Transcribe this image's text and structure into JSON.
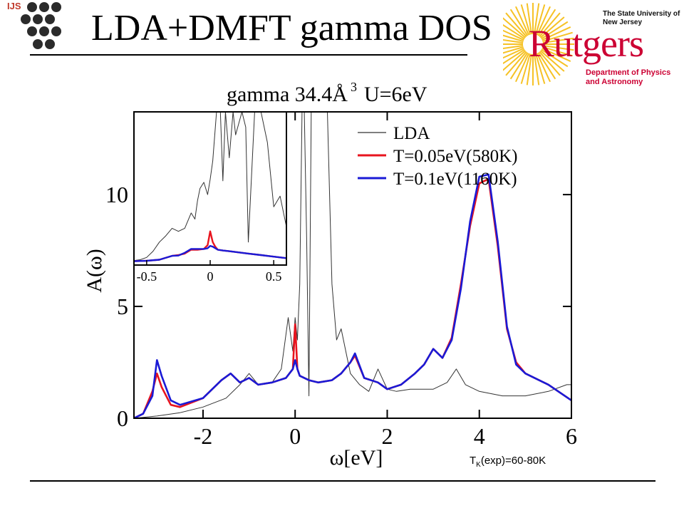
{
  "slide": {
    "title": "LDA+DMFT gamma DOS",
    "ijs_label": "IJS",
    "rutgers_wordmark": "Rutgers",
    "rutgers_university": "The State University of New Jersey",
    "rutgers_department": "Department of Physics and Astronomy",
    "footnote_prefix": "T",
    "footnote_sub": "K",
    "footnote_rest": "(exp)=60-80K",
    "accent_red": "#cc0033"
  },
  "chart_data": [
    {
      "type": "line",
      "title": "gamma 34.4Å",
      "title_superscript": "3",
      "title_suffix": "U=6eV",
      "xlabel": "ω[eV]",
      "ylabel": "A(ω)",
      "xlim": [
        -3.5,
        6
      ],
      "ylim": [
        0,
        13.7
      ],
      "xticks": [
        -2,
        0,
        2,
        4,
        6
      ],
      "yticks": [
        0,
        5,
        10
      ],
      "legend_position": "top-right",
      "series": [
        {
          "name": "LDA",
          "color": "#333333",
          "x": [
            -3.5,
            -3.0,
            -2.5,
            -2.0,
            -1.5,
            -1.2,
            -1.0,
            -0.8,
            -0.5,
            -0.3,
            -0.15,
            -0.05,
            0.0,
            0.05,
            0.1,
            0.15,
            0.2,
            0.25,
            0.3,
            0.35,
            0.4,
            0.5,
            0.6,
            0.7,
            0.8,
            0.9,
            1.0,
            1.2,
            1.4,
            1.6,
            1.8,
            2.0,
            2.2,
            2.5,
            3.0,
            3.3,
            3.5,
            3.7,
            4.0,
            4.5,
            5.0,
            5.5,
            5.9,
            6.0
          ],
          "y": [
            0.0,
            0.1,
            0.25,
            0.5,
            0.9,
            1.5,
            2.0,
            1.5,
            1.6,
            2.2,
            4.5,
            3.0,
            4.5,
            3.5,
            6.0,
            13.7,
            13.7,
            8.0,
            1.0,
            13.7,
            13.7,
            13.7,
            13.7,
            13.7,
            6.0,
            3.5,
            4.0,
            2.0,
            1.5,
            1.2,
            2.2,
            1.3,
            1.2,
            1.3,
            1.3,
            1.6,
            2.2,
            1.5,
            1.2,
            1.0,
            1.0,
            1.2,
            1.5,
            1.5
          ]
        },
        {
          "name": "T=0.05eV(580K)",
          "color": "#e8141e",
          "x": [
            -3.5,
            -3.3,
            -3.1,
            -3.0,
            -2.9,
            -2.7,
            -2.5,
            -2.0,
            -1.6,
            -1.4,
            -1.2,
            -1.0,
            -0.8,
            -0.5,
            -0.2,
            -0.05,
            0.0,
            0.05,
            0.1,
            0.3,
            0.5,
            0.8,
            1.0,
            1.2,
            1.3,
            1.5,
            1.8,
            2.0,
            2.3,
            2.6,
            2.8,
            3.0,
            3.2,
            3.4,
            3.6,
            3.8,
            4.0,
            4.2,
            4.4,
            4.6,
            4.8,
            5.0,
            5.5,
            6.0
          ],
          "y": [
            0.0,
            0.2,
            1.2,
            2.0,
            1.4,
            0.6,
            0.5,
            0.9,
            1.7,
            2.0,
            1.6,
            1.8,
            1.5,
            1.6,
            1.8,
            2.2,
            4.2,
            2.2,
            1.9,
            1.7,
            1.6,
            1.7,
            2.0,
            2.5,
            2.8,
            1.8,
            1.6,
            1.3,
            1.5,
            2.0,
            2.4,
            3.1,
            2.7,
            3.6,
            6.0,
            8.6,
            10.5,
            10.7,
            7.7,
            4.0,
            2.5,
            2.0,
            1.5,
            0.8
          ]
        },
        {
          "name": "T=0.1eV(1160K)",
          "color": "#1a1ad6",
          "x": [
            -3.5,
            -3.3,
            -3.1,
            -3.0,
            -2.9,
            -2.7,
            -2.5,
            -2.0,
            -1.6,
            -1.4,
            -1.2,
            -1.0,
            -0.8,
            -0.5,
            -0.2,
            -0.05,
            0.0,
            0.05,
            0.1,
            0.3,
            0.5,
            0.8,
            1.0,
            1.2,
            1.3,
            1.5,
            1.8,
            2.0,
            2.3,
            2.6,
            2.8,
            3.0,
            3.2,
            3.4,
            3.6,
            3.8,
            4.0,
            4.2,
            4.4,
            4.6,
            4.8,
            5.0,
            5.5,
            6.0
          ],
          "y": [
            0.0,
            0.2,
            1.0,
            2.6,
            1.9,
            0.8,
            0.6,
            0.9,
            1.7,
            2.0,
            1.6,
            1.8,
            1.5,
            1.6,
            1.8,
            2.2,
            2.6,
            2.2,
            1.9,
            1.7,
            1.6,
            1.7,
            2.0,
            2.5,
            2.9,
            1.8,
            1.6,
            1.3,
            1.5,
            2.0,
            2.4,
            3.1,
            2.7,
            3.5,
            5.8,
            8.8,
            10.8,
            10.9,
            7.9,
            4.1,
            2.4,
            2.0,
            1.5,
            0.8
          ]
        }
      ]
    },
    {
      "type": "line",
      "role": "inset",
      "xlim": [
        -0.6,
        0.6
      ],
      "xticks": [
        -0.5,
        0,
        0.5
      ],
      "xtick_labels": [
        "-0.5",
        "0",
        "0.5"
      ],
      "ylim": [
        0,
        10
      ],
      "series": [
        {
          "name": "LDA",
          "color": "#333333",
          "x": [
            -0.6,
            -0.55,
            -0.5,
            -0.45,
            -0.4,
            -0.35,
            -0.3,
            -0.25,
            -0.2,
            -0.15,
            -0.12,
            -0.1,
            -0.08,
            -0.05,
            -0.02,
            0.0,
            0.02,
            0.05,
            0.08,
            0.1,
            0.12,
            0.15,
            0.18,
            0.2,
            0.25,
            0.28,
            0.3,
            0.35,
            0.4,
            0.45,
            0.5,
            0.55,
            0.6
          ],
          "y": [
            0.3,
            0.35,
            0.5,
            0.9,
            1.5,
            1.9,
            2.4,
            2.2,
            2.4,
            3.4,
            3.0,
            4.2,
            5.0,
            5.4,
            4.6,
            5.6,
            6.8,
            10.0,
            10.0,
            5.5,
            10.0,
            7.0,
            10.0,
            8.5,
            10.0,
            9.0,
            1.5,
            10.0,
            10.0,
            8.0,
            3.8,
            4.5,
            2.5
          ]
        },
        {
          "name": "T=0.05eV(580K)",
          "color": "#e8141e",
          "x": [
            -0.6,
            -0.5,
            -0.4,
            -0.3,
            -0.25,
            -0.2,
            -0.15,
            -0.1,
            -0.05,
            -0.02,
            0.0,
            0.02,
            0.04,
            0.06,
            0.1,
            0.15,
            0.2,
            0.3,
            0.4,
            0.5,
            0.6
          ],
          "y": [
            0.25,
            0.28,
            0.35,
            0.6,
            0.65,
            0.75,
            1.0,
            1.0,
            1.05,
            1.3,
            2.2,
            1.5,
            1.2,
            1.0,
            0.95,
            0.9,
            0.85,
            0.75,
            0.65,
            0.55,
            0.45
          ]
        },
        {
          "name": "T=0.1eV(1160K)",
          "color": "#1a1ad6",
          "x": [
            -0.6,
            -0.5,
            -0.4,
            -0.3,
            -0.25,
            -0.2,
            -0.15,
            -0.1,
            -0.05,
            -0.02,
            0.0,
            0.02,
            0.04,
            0.06,
            0.1,
            0.15,
            0.2,
            0.3,
            0.4,
            0.5,
            0.6
          ],
          "y": [
            0.25,
            0.28,
            0.35,
            0.6,
            0.62,
            0.8,
            1.05,
            1.05,
            1.05,
            1.1,
            1.25,
            1.2,
            1.1,
            1.0,
            0.95,
            0.9,
            0.85,
            0.75,
            0.65,
            0.55,
            0.45
          ]
        }
      ]
    }
  ]
}
